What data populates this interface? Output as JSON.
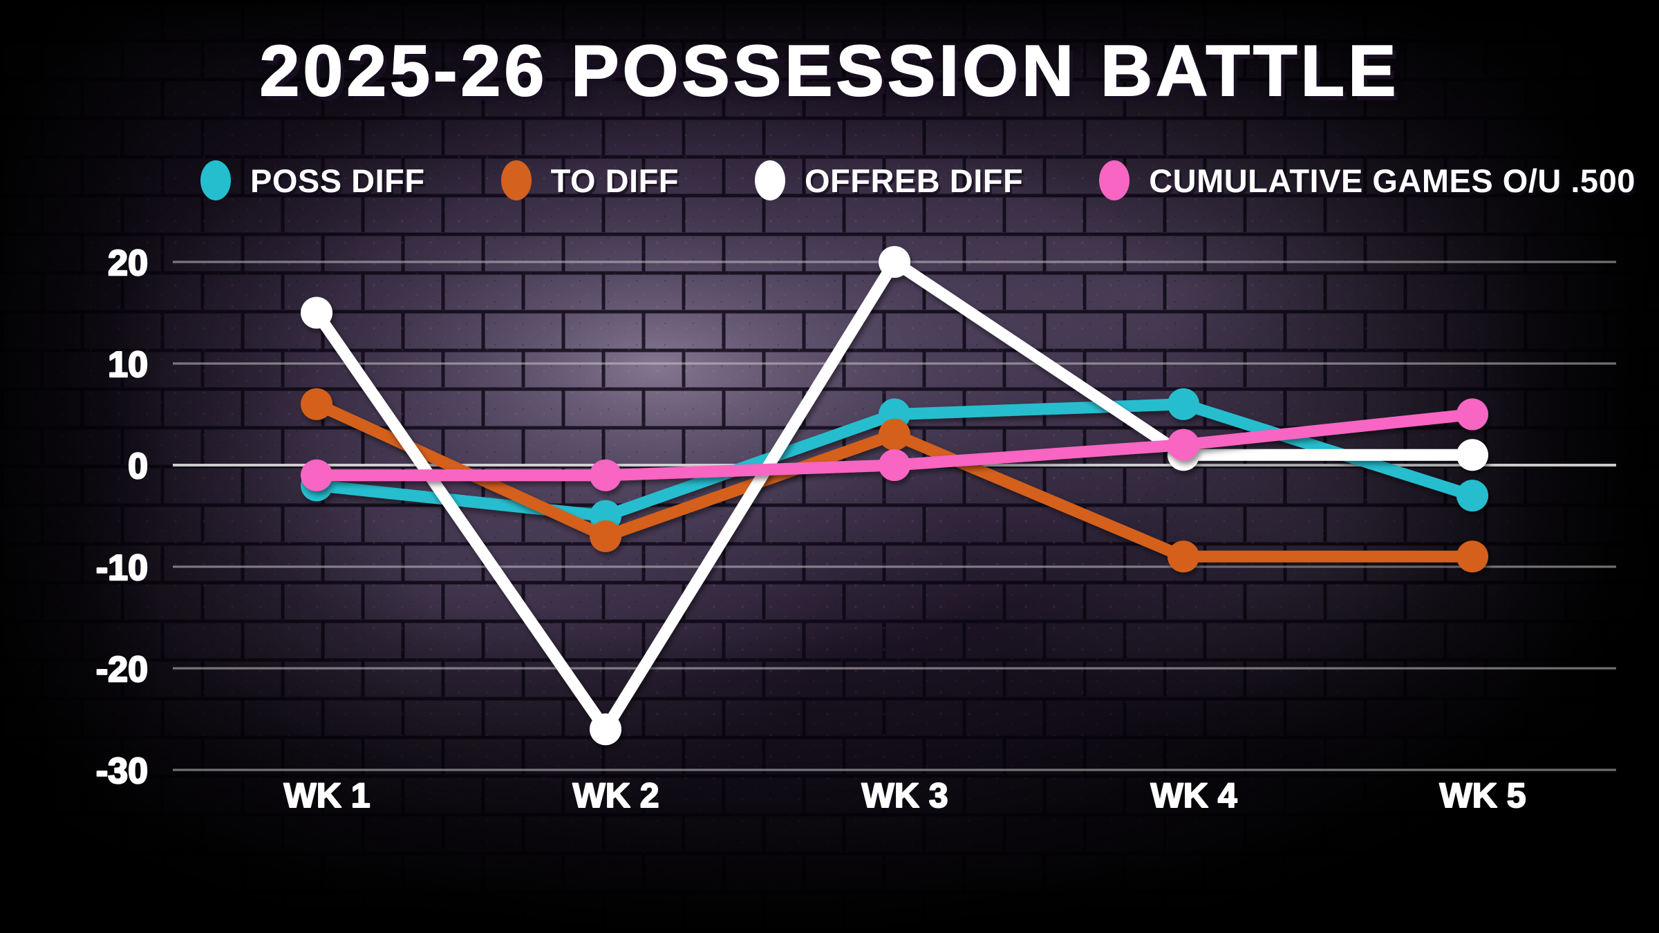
{
  "title": "2025-26 POSSESSION BATTLE",
  "legend": [
    {
      "label": "POSS DIFF",
      "color": "#25becf"
    },
    {
      "label": "TO DIFF",
      "color": "#d4611e"
    },
    {
      "label": "OFFREB DIFF",
      "color": "#ffffff"
    },
    {
      "label": "CUMULATIVE GAMES O/U .500",
      "color": "#f865c2"
    }
  ],
  "chart_data": {
    "type": "line",
    "title": "2025-26 POSSESSION BATTLE",
    "categories": [
      "WK 1",
      "WK 2",
      "WK 3",
      "WK 4",
      "WK 5"
    ],
    "series": [
      {
        "name": "POSS DIFF",
        "color": "#25becf",
        "values": [
          -2,
          -5,
          5,
          6,
          -3
        ]
      },
      {
        "name": "TO DIFF",
        "color": "#d4611e",
        "values": [
          6,
          -7,
          3,
          -9,
          -9
        ]
      },
      {
        "name": "OFFREB DIFF",
        "color": "#ffffff",
        "values": [
          15,
          -26,
          20,
          1,
          1
        ]
      },
      {
        "name": "CUMULATIVE GAMES O/U .500",
        "color": "#f865c2",
        "values": [
          -1,
          -1,
          0,
          2,
          5
        ]
      }
    ],
    "y_ticks": [
      20,
      10,
      0,
      -10,
      -20,
      -30
    ],
    "ylim": [
      -32,
      23
    ],
    "xlabel": "",
    "ylabel": "",
    "grid": true,
    "legend_position": "top"
  },
  "colors": {
    "grid_line": "#c9c9c9",
    "zero_line": "#ededed",
    "axis_label": "#ffffff"
  }
}
